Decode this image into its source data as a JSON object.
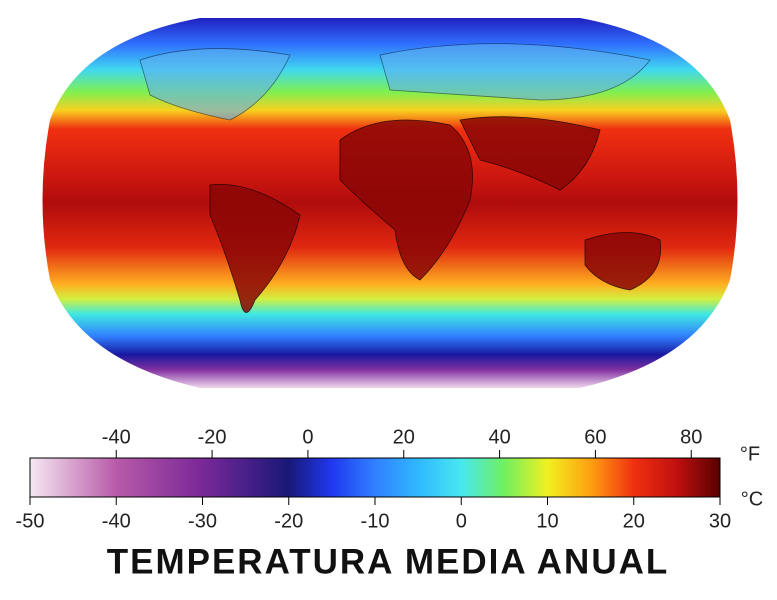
{
  "title": "TEMPERATURA MEDIA ANUAL",
  "colorbar": {
    "fahrenheit": {
      "unit": "°F",
      "lim": [
        -58,
        86
      ],
      "ticks": [
        -40,
        -20,
        0,
        20,
        40,
        60,
        80
      ]
    },
    "celsius": {
      "unit": "°C",
      "lim": [
        -50,
        30
      ],
      "ticks": [
        -50,
        -40,
        -30,
        -20,
        -10,
        0,
        10,
        20,
        30
      ]
    },
    "color_stops": [
      {
        "value": -50,
        "color": "#f6e8f2"
      },
      {
        "value": -40,
        "color": "#b85aa8"
      },
      {
        "value": -30,
        "color": "#7a2898"
      },
      {
        "value": -20,
        "color": "#181878"
      },
      {
        "value": -15,
        "color": "#2038f0"
      },
      {
        "value": -10,
        "color": "#3080ff"
      },
      {
        "value": -5,
        "color": "#30b8ff"
      },
      {
        "value": 0,
        "color": "#48e8f0"
      },
      {
        "value": 5,
        "color": "#70f060"
      },
      {
        "value": 10,
        "color": "#f0f020"
      },
      {
        "value": 15,
        "color": "#ffa010"
      },
      {
        "value": 20,
        "color": "#f03010"
      },
      {
        "value": 25,
        "color": "#c01010"
      },
      {
        "value": 30,
        "color": "#580000"
      }
    ]
  }
}
